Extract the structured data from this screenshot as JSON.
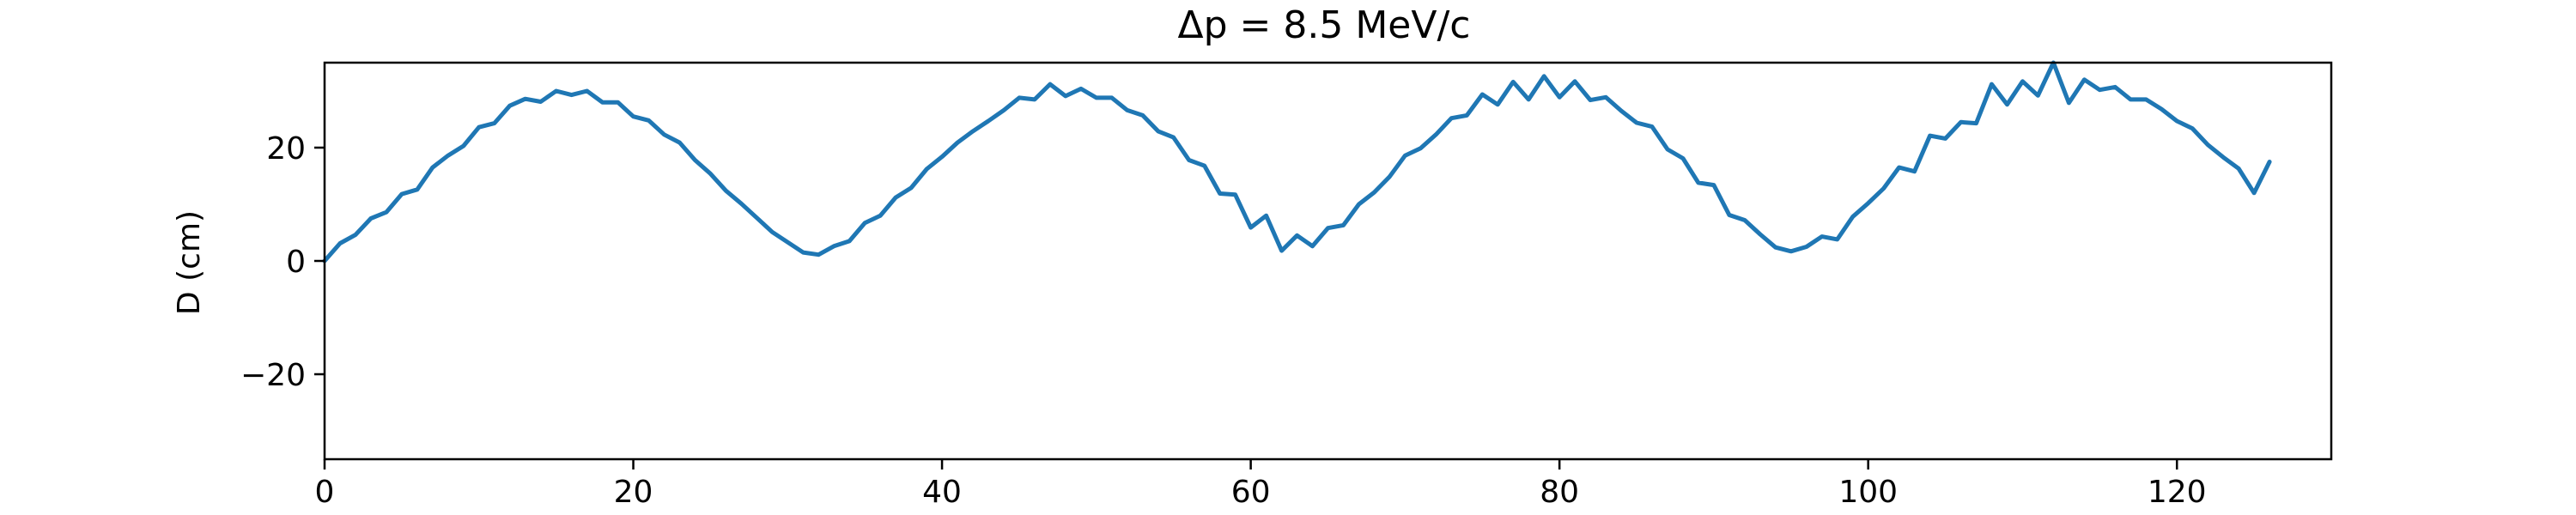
{
  "chart_data": {
    "type": "line",
    "title": "Δp = 8.5 MeV/c",
    "xlabel": "",
    "ylabel": "D (cm)",
    "xlim": [
      0,
      130
    ],
    "ylim": [
      -35,
      35
    ],
    "x_ticks": [
      0,
      20,
      40,
      60,
      80,
      100,
      120
    ],
    "x_tick_labels": [
      "0",
      "20",
      "40",
      "60",
      "80",
      "100",
      "120"
    ],
    "y_ticks": [
      -20,
      0,
      20
    ],
    "y_tick_labels": [
      "−20",
      "0",
      "20"
    ],
    "grid": false,
    "colors": {
      "line": "#1f77b4",
      "axes": "#000000",
      "background": "#ffffff"
    },
    "series": [
      {
        "x": [
          0,
          1,
          2,
          3,
          4,
          5,
          6,
          7,
          8,
          9,
          10,
          11,
          12,
          13,
          14,
          15,
          16,
          17,
          18,
          19,
          20,
          21,
          22,
          23,
          24,
          25,
          26,
          27,
          28,
          29,
          30,
          31,
          32,
          33,
          34,
          35,
          36,
          37,
          38,
          39,
          40,
          41,
          42,
          43,
          44,
          45,
          46,
          47,
          48,
          49,
          50,
          51,
          52,
          53,
          54,
          55,
          56,
          57,
          58,
          59,
          60,
          61,
          62,
          63,
          64,
          65,
          66,
          67,
          68,
          69,
          70,
          71,
          72,
          73,
          74,
          75,
          76,
          77,
          78,
          79,
          80,
          81,
          82,
          83,
          84,
          85,
          86,
          87,
          88,
          89,
          90,
          91,
          92,
          93,
          94,
          95,
          96,
          97,
          98,
          99,
          100,
          101,
          102,
          103,
          104,
          105,
          106,
          107,
          108,
          109,
          110,
          111,
          112,
          113,
          114,
          115,
          116,
          117,
          118,
          119,
          120,
          121,
          122,
          123,
          124,
          125,
          126
        ],
        "values": [
          0.0,
          3.1,
          4.6,
          7.5,
          8.6,
          11.8,
          12.6,
          16.5,
          18.6,
          20.3,
          23.6,
          24.3,
          27.4,
          28.6,
          28.1,
          30.0,
          29.3,
          30.0,
          28.0,
          28.0,
          25.5,
          24.8,
          22.3,
          20.9,
          17.8,
          15.4,
          12.4,
          10.1,
          7.6,
          5.1,
          3.3,
          1.5,
          1.1,
          2.6,
          3.5,
          6.7,
          8.0,
          11.2,
          12.9,
          16.2,
          18.4,
          20.9,
          22.9,
          24.7,
          26.6,
          28.8,
          28.5,
          31.2,
          29.1,
          30.4,
          28.8,
          28.8,
          26.6,
          25.7,
          22.9,
          21.8,
          17.8,
          16.8,
          11.9,
          11.7,
          5.9,
          8.0,
          1.8,
          4.5,
          2.6,
          5.8,
          6.3,
          10.0,
          12.1,
          14.9,
          18.6,
          19.9,
          22.3,
          25.2,
          25.7,
          29.4,
          27.6,
          31.6,
          28.5,
          32.6,
          28.9,
          31.7,
          28.4,
          28.9,
          26.5,
          24.4,
          23.7,
          19.7,
          18.1,
          13.8,
          13.4,
          8.1,
          7.2,
          4.7,
          2.4,
          1.7,
          2.5,
          4.3,
          3.8,
          7.8,
          10.2,
          12.8,
          16.5,
          15.8,
          22.1,
          21.6,
          24.5,
          24.3,
          31.2,
          27.6,
          31.7,
          29.2,
          35.0,
          27.9,
          32.0,
          30.2,
          30.7,
          28.5,
          28.5,
          26.8,
          24.7,
          23.4,
          20.5,
          18.3,
          16.3,
          12.0,
          17.5
        ]
      }
    ]
  }
}
